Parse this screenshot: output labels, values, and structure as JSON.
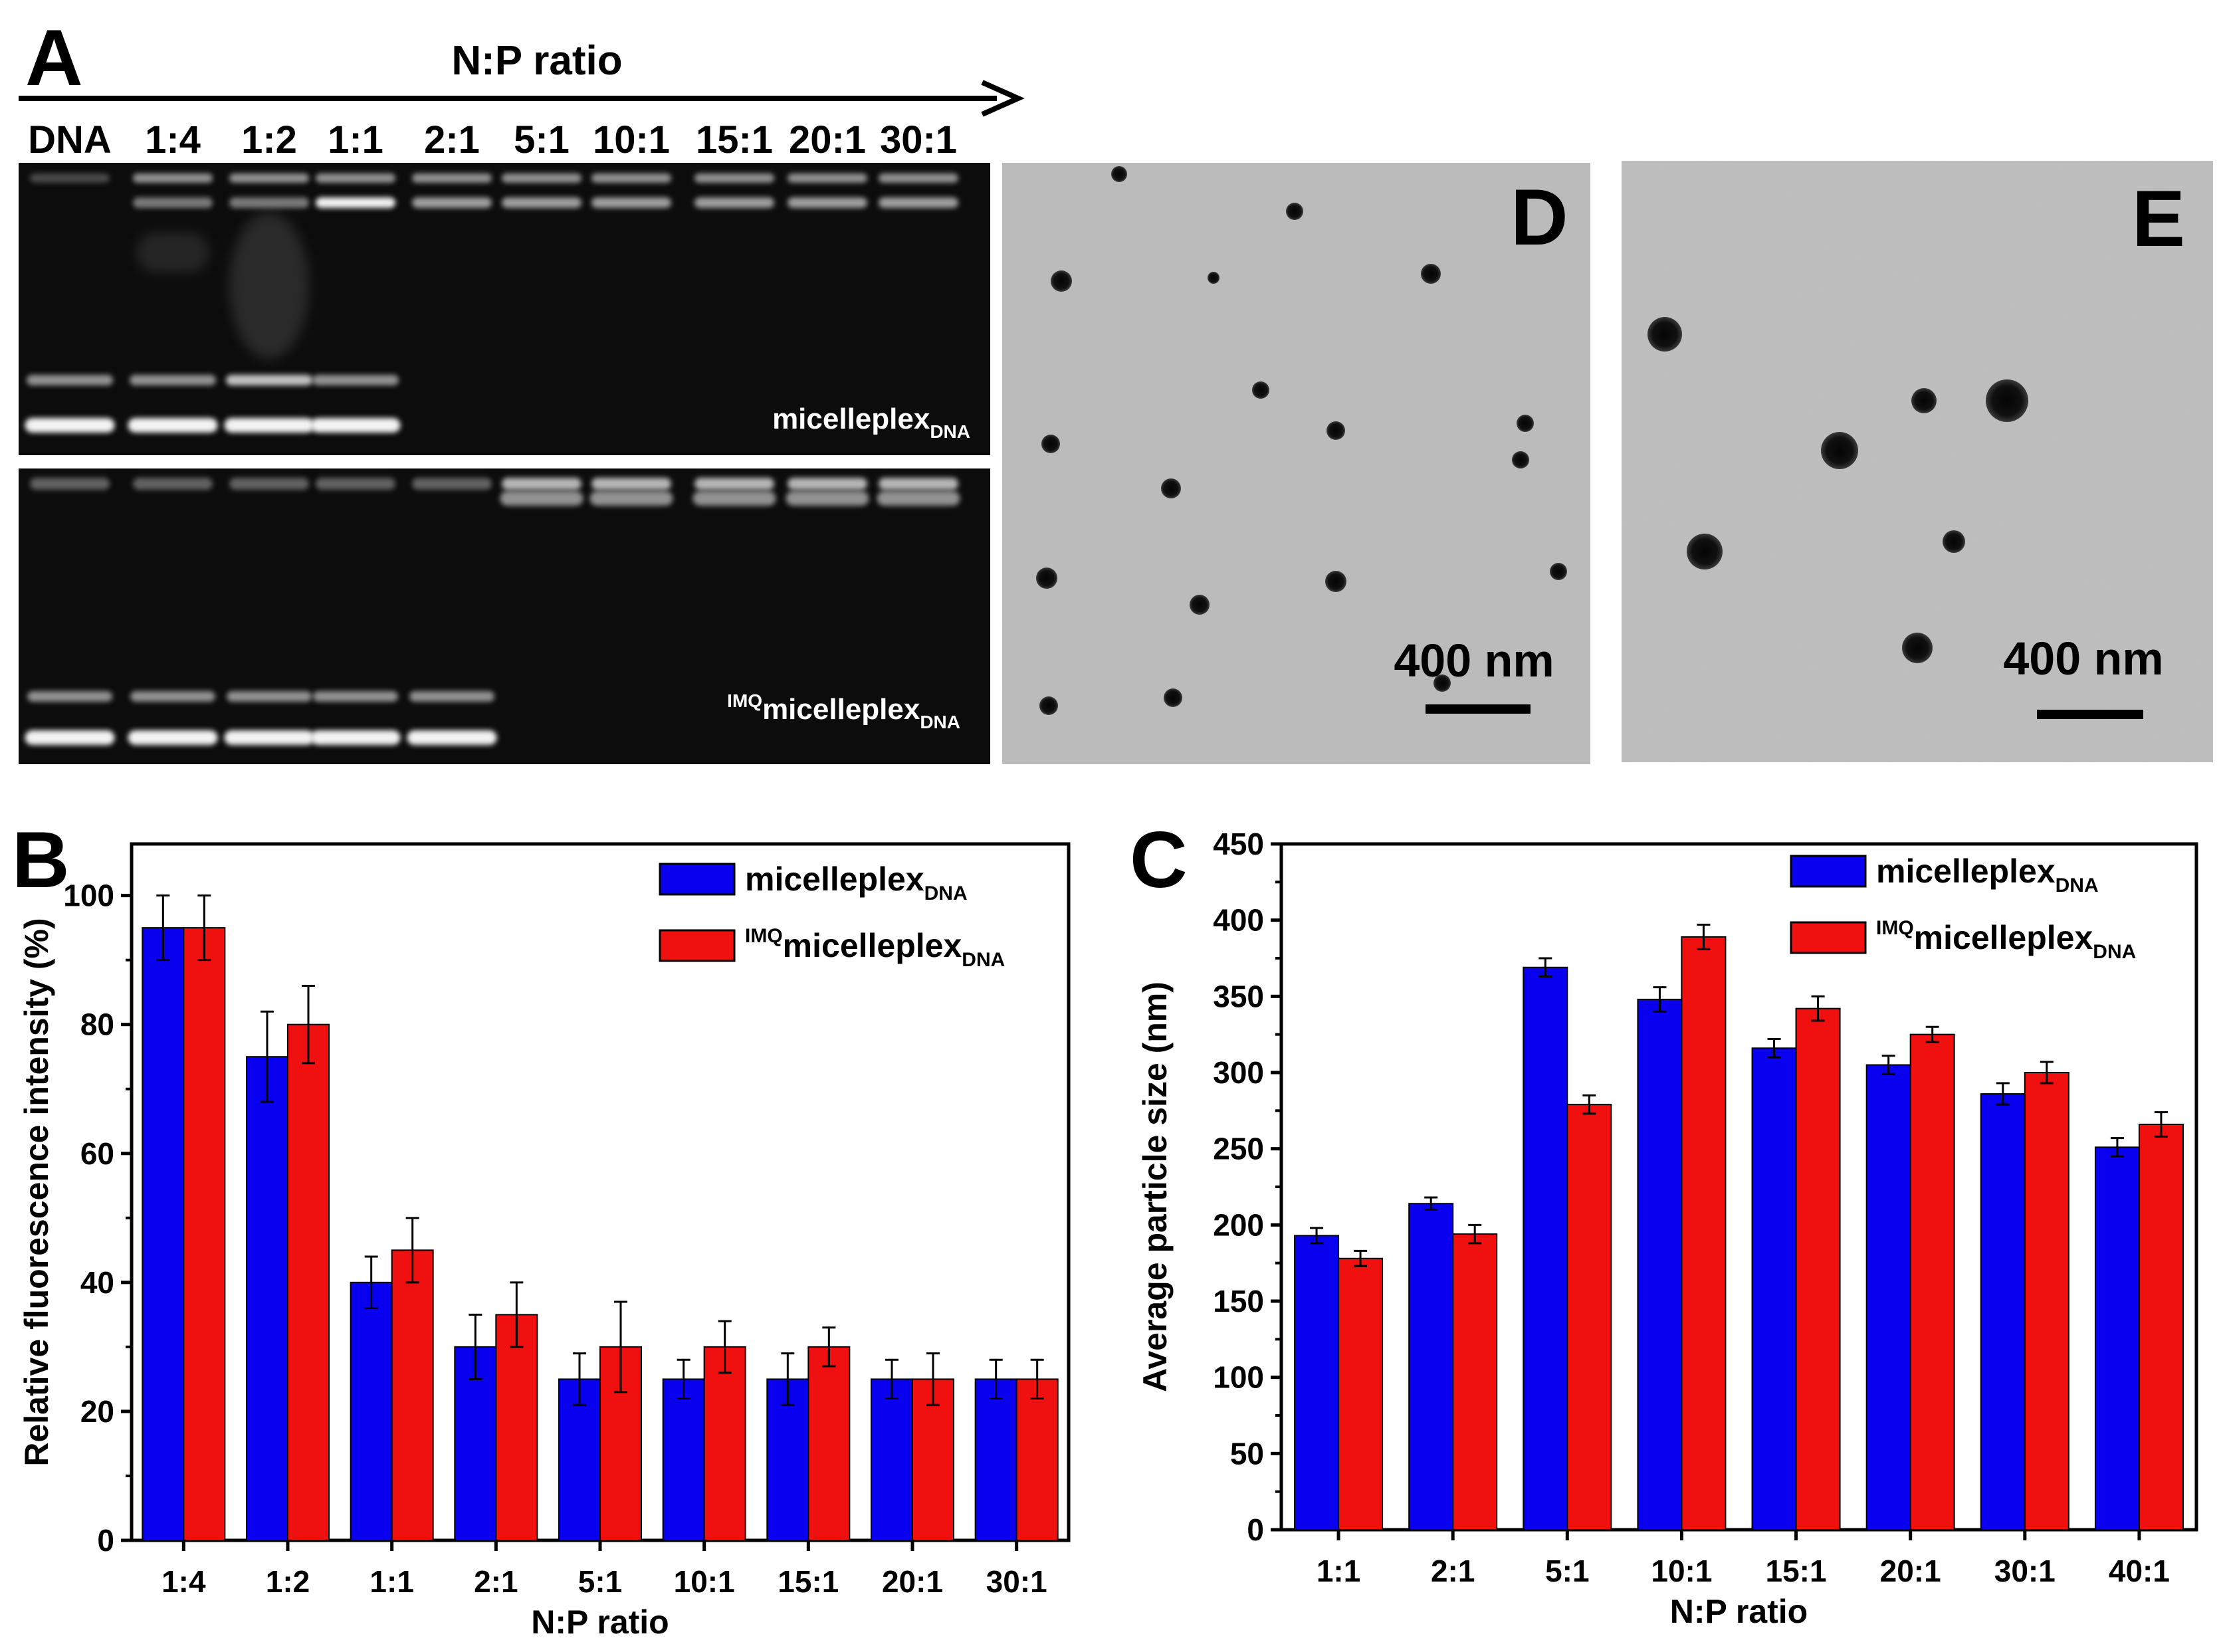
{
  "panels": {
    "A": {
      "letter": "A",
      "axis_label": "N:P ratio",
      "lanes": [
        "DNA",
        "1:4",
        "1:2",
        "1:1",
        "2:1",
        "5:1",
        "10:1",
        "15:1",
        "20:1",
        "30:1"
      ],
      "gel_top_label": {
        "main": "micelleplex",
        "sub": "DNA"
      },
      "gel_bottom_label": {
        "sup": "IMQ",
        "main": "micelleplex",
        "sub": "DNA"
      }
    },
    "D": {
      "letter": "D",
      "scale_bar": "400 nm"
    },
    "E": {
      "letter": "E",
      "scale_bar": "400 nm"
    }
  },
  "chart_data": [
    {
      "panel": "B",
      "type": "bar",
      "letter": "B",
      "categories": [
        "1:4",
        "1:2",
        "1:1",
        "2:1",
        "5:1",
        "10:1",
        "15:1",
        "20:1",
        "30:1"
      ],
      "series": [
        {
          "name": "micelleplex",
          "name_sub": "DNA",
          "color": "#0a00f0",
          "values": [
            95,
            75,
            40,
            30,
            25,
            25,
            25,
            25,
            25
          ],
          "errors": [
            5,
            7,
            4,
            5,
            4,
            3,
            4,
            3,
            3
          ]
        },
        {
          "name": "micelleplex",
          "name_sup": "IMQ",
          "name_sub": "DNA",
          "color": "#f01010",
          "values": [
            95,
            80,
            45,
            35,
            30,
            30,
            30,
            25,
            25
          ],
          "errors": [
            5,
            6,
            5,
            5,
            7,
            4,
            3,
            4,
            3
          ]
        }
      ],
      "xlabel": "N:P ratio",
      "ylabel": "Relative fluorescence intensity (%)",
      "ylim": [
        0,
        108
      ],
      "yticks": [
        0,
        20,
        40,
        60,
        80,
        100
      ],
      "legend": "top-right"
    },
    {
      "panel": "C",
      "type": "bar",
      "letter": "C",
      "categories": [
        "1:1",
        "2:1",
        "5:1",
        "10:1",
        "15:1",
        "20:1",
        "30:1",
        "40:1"
      ],
      "series": [
        {
          "name": "micelleplex",
          "name_sub": "DNA",
          "color": "#0a00f0",
          "values": [
            193,
            214,
            369,
            348,
            316,
            305,
            286,
            251
          ],
          "errors": [
            5,
            4,
            6,
            8,
            6,
            6,
            7,
            6
          ]
        },
        {
          "name": "micelleplex",
          "name_sup": "IMQ",
          "name_sub": "DNA",
          "color": "#f01010",
          "values": [
            178,
            194,
            279,
            389,
            342,
            325,
            300,
            266
          ],
          "errors": [
            5,
            6,
            6,
            8,
            8,
            5,
            7,
            8
          ]
        }
      ],
      "xlabel": "N:P ratio",
      "ylabel": "Average particle size (nm)",
      "ylim": [
        0,
        450
      ],
      "yticks": [
        0,
        50,
        100,
        150,
        200,
        250,
        300,
        350,
        400,
        450
      ],
      "legend": "top-right"
    }
  ]
}
